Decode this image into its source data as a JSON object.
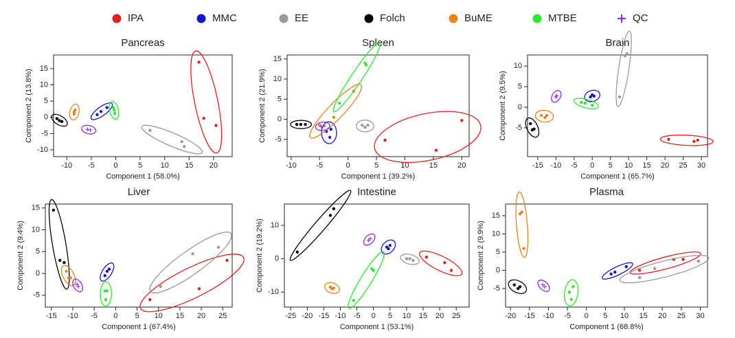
{
  "chart_data": [
    {
      "type": "scatter",
      "title": "Pancreas",
      "xlabel": "Component 1 (58.0%)",
      "ylabel": "Component 2 (13.8%)",
      "xlim": [
        -12.7,
        23.8
      ],
      "ylim": [
        -12.1,
        19.2
      ],
      "xticks": [
        -10,
        -5,
        0,
        5,
        10,
        15,
        20
      ],
      "yticks": [
        -10,
        -5,
        0,
        5,
        10,
        15
      ],
      "series": [
        {
          "name": "IPA",
          "color": "#e0201f",
          "x": [
            17,
            18,
            20.5
          ],
          "y": [
            17,
            -0.3,
            -2.5
          ]
        },
        {
          "name": "MMC",
          "color": "#1414c8",
          "x": [
            -3.8,
            -3,
            -1.8
          ],
          "y": [
            0.8,
            1.8,
            3
          ]
        },
        {
          "name": "EE",
          "color": "#999999",
          "x": [
            7,
            13.5,
            14
          ],
          "y": [
            -4,
            -7.5,
            -9
          ]
        },
        {
          "name": "Folch",
          "color": "#000000",
          "x": [
            -12,
            -11.5,
            -11
          ],
          "y": [
            -0.4,
            -1,
            -1.3
          ]
        },
        {
          "name": "BuME",
          "color": "#e8821e",
          "x": [
            -8.5,
            -8.3,
            -8.5
          ],
          "y": [
            1,
            2.3,
            1.6
          ]
        },
        {
          "name": "MTBE",
          "color": "#2ee62e",
          "x": [
            -0.5,
            -0.3,
            -0.2
          ],
          "y": [
            3,
            2.2,
            1.2
          ]
        },
        {
          "name": "QC",
          "color": "#8a2be2",
          "x": [
            -5.8,
            -5.2
          ],
          "y": [
            -3.7,
            -3.9
          ]
        }
      ]
    },
    {
      "type": "scatter",
      "title": "Spleen",
      "xlabel": "Component 1 (39.2%)",
      "ylabel": "Component 2 (21.9%)",
      "xlim": [
        -10.7,
        21.3
      ],
      "ylim": [
        -9.3,
        16
      ],
      "xticks": [
        -10,
        -5,
        0,
        5,
        10,
        15,
        20
      ],
      "yticks": [
        -5,
        0,
        5,
        10,
        15
      ],
      "series": [
        {
          "name": "IPA",
          "color": "#e0201f",
          "x": [
            6.5,
            15.5,
            20
          ],
          "y": [
            -5.2,
            -7.7,
            -0.3
          ]
        },
        {
          "name": "MMC",
          "color": "#1414c8",
          "x": [
            -3.8,
            -3.2,
            -3
          ],
          "y": [
            -3,
            -4.5,
            -2.5
          ]
        },
        {
          "name": "EE",
          "color": "#999999",
          "x": [
            2.5,
            3,
            3.5
          ],
          "y": [
            -1.5,
            -2,
            -1.5
          ]
        },
        {
          "name": "Folch",
          "color": "#000000",
          "x": [
            -9,
            -8.3,
            -7.5
          ],
          "y": [
            -1.3,
            -1.3,
            -1.3
          ]
        },
        {
          "name": "BuME",
          "color": "#e8821e",
          "x": [
            -5,
            -2.5,
            1
          ],
          "y": [
            -1.5,
            0.5,
            7
          ]
        },
        {
          "name": "MTBE",
          "color": "#2ee62e",
          "x": [
            -1.5,
            3.2,
            3
          ],
          "y": [
            4,
            13.5,
            14
          ]
        },
        {
          "name": "QC",
          "color": "#8a2be2",
          "x": [
            -4.7,
            -4.2
          ],
          "y": [
            -1.8,
            -1.7
          ]
        }
      ]
    },
    {
      "type": "scatter",
      "title": "Brain",
      "xlabel": "Component 1 (65.7%)",
      "ylabel": "Component 2 (9.5%)",
      "xlim": [
        -17.8,
        31.7
      ],
      "ylim": [
        -12,
        12.7
      ],
      "xticks": [
        -15,
        -10,
        -5,
        0,
        5,
        10,
        15,
        20,
        25,
        30
      ],
      "yticks": [
        -5,
        0,
        5,
        10
      ],
      "series": [
        {
          "name": "IPA",
          "color": "#e0201f",
          "x": [
            21,
            28,
            29
          ],
          "y": [
            -7.8,
            -8.3,
            -8
          ]
        },
        {
          "name": "MMC",
          "color": "#1414c8",
          "x": [
            -0.5,
            0,
            0.5
          ],
          "y": [
            2.5,
            3,
            2.7
          ]
        },
        {
          "name": "EE",
          "color": "#999999",
          "x": [
            7.5,
            9,
            9.5
          ],
          "y": [
            2.5,
            12.5,
            13
          ]
        },
        {
          "name": "Folch",
          "color": "#000000",
          "x": [
            -17,
            -16.5,
            -16
          ],
          "y": [
            -4,
            -5.5,
            -5.3
          ]
        },
        {
          "name": "BuME",
          "color": "#e8821e",
          "x": [
            -14,
            -13,
            -12.5
          ],
          "y": [
            -2,
            -2.5,
            -2
          ]
        },
        {
          "name": "MTBE",
          "color": "#2ee62e",
          "x": [
            -3,
            0,
            -2
          ],
          "y": [
            1.2,
            0.5,
            1
          ]
        },
        {
          "name": "QC",
          "color": "#8a2be2",
          "x": [
            -10,
            -9.8
          ],
          "y": [
            2.5,
            2.8
          ]
        }
      ]
    },
    {
      "type": "scatter",
      "title": "Liver",
      "xlabel": "Component 1 (67.4%)",
      "ylabel": "Component 2 (9.4%)",
      "xlim": [
        -16.4,
        27.2
      ],
      "ylim": [
        -7.7,
        15.9
      ],
      "xticks": [
        -15,
        -10,
        -5,
        0,
        5,
        10,
        15,
        20,
        25
      ],
      "yticks": [
        -5,
        0,
        5,
        10,
        15
      ],
      "series": [
        {
          "name": "IPA",
          "color": "#e0201f",
          "x": [
            8,
            19.5,
            26
          ],
          "y": [
            -6,
            -3.5,
            3
          ]
        },
        {
          "name": "MMC",
          "color": "#1414c8",
          "x": [
            -2.5,
            -2,
            -1.5
          ],
          "y": [
            -0.5,
            0.5,
            1
          ]
        },
        {
          "name": "EE",
          "color": "#999999",
          "x": [
            10.5,
            18,
            24
          ],
          "y": [
            -3,
            4.5,
            6
          ]
        },
        {
          "name": "Folch",
          "color": "#000000",
          "x": [
            -14.5,
            -13,
            -12
          ],
          "y": [
            14.5,
            3,
            2.5
          ]
        },
        {
          "name": "BuME",
          "color": "#e8821e",
          "x": [
            -11.5,
            -11,
            -10.5
          ],
          "y": [
            0.5,
            -1,
            -1
          ]
        },
        {
          "name": "MTBE",
          "color": "#2ee62e",
          "x": [
            -2.5,
            -2.3,
            -2
          ],
          "y": [
            -4,
            -6,
            -4
          ]
        },
        {
          "name": "QC",
          "color": "#8a2be2",
          "x": [
            -9,
            -8.7
          ],
          "y": [
            -2.5,
            -3
          ]
        }
      ]
    },
    {
      "type": "scatter",
      "title": "Intestine",
      "xlabel": "Component 1 (53.1%)",
      "ylabel": "Component 2 (19.2%)",
      "xlim": [
        -26.9,
        28.9
      ],
      "ylim": [
        -14.5,
        16.4
      ],
      "xticks": [
        -25,
        -20,
        -15,
        -10,
        -5,
        0,
        5,
        10,
        15,
        20,
        25
      ],
      "yticks": [
        -10,
        0,
        10
      ],
      "series": [
        {
          "name": "IPA",
          "color": "#e0201f",
          "x": [
            16,
            21.5,
            23.5
          ],
          "y": [
            0.5,
            -1.2,
            -3.5
          ]
        },
        {
          "name": "MMC",
          "color": "#1414c8",
          "x": [
            4,
            4.5,
            5
          ],
          "y": [
            3.5,
            3,
            4
          ]
        },
        {
          "name": "EE",
          "color": "#999999",
          "x": [
            10,
            11,
            12
          ],
          "y": [
            0,
            0,
            -0.5
          ]
        },
        {
          "name": "Folch",
          "color": "#000000",
          "x": [
            -23,
            -13,
            -12
          ],
          "y": [
            2,
            13,
            15
          ]
        },
        {
          "name": "BuME",
          "color": "#e8821e",
          "x": [
            -13,
            -12.5,
            -12
          ],
          "y": [
            -8.5,
            -9,
            -8.8
          ]
        },
        {
          "name": "MTBE",
          "color": "#2ee62e",
          "x": [
            -6,
            -0.5,
            0
          ],
          "y": [
            -12.5,
            -3,
            -3.5
          ]
        },
        {
          "name": "QC",
          "color": "#8a2be2",
          "x": [
            -1.5,
            -1
          ],
          "y": [
            5.5,
            6
          ]
        }
      ]
    },
    {
      "type": "scatter",
      "title": "Plasma",
      "xlabel": "Component 1 (68.8%)",
      "ylabel": "Component 2 (9.9%)",
      "xlim": [
        -21.3,
        31.9
      ],
      "ylim": [
        -10.1,
        18.2
      ],
      "xticks": [
        -20,
        -15,
        -10,
        -5,
        0,
        5,
        10,
        15,
        20,
        25,
        30
      ],
      "yticks": [
        -5,
        0,
        5,
        10,
        15
      ],
      "series": [
        {
          "name": "IPA",
          "color": "#e0201f",
          "x": [
            14,
            23,
            25.5
          ],
          "y": [
            0,
            3,
            3
          ]
        },
        {
          "name": "MMC",
          "color": "#1414c8",
          "x": [
            6.5,
            7.5,
            10.5
          ],
          "y": [
            -1,
            -0.5,
            1
          ]
        },
        {
          "name": "EE",
          "color": "#999999",
          "x": [
            14,
            18,
            29.5
          ],
          "y": [
            -2,
            0.5,
            2.5
          ]
        },
        {
          "name": "Folch",
          "color": "#000000",
          "x": [
            -19,
            -18,
            -17.5
          ],
          "y": [
            -4,
            -5,
            -4.5
          ]
        },
        {
          "name": "BuME",
          "color": "#e8821e",
          "x": [
            -17.5,
            -17,
            -16.5
          ],
          "y": [
            15.5,
            16,
            6
          ]
        },
        {
          "name": "MTBE",
          "color": "#2ee62e",
          "x": [
            -4.5,
            -4,
            -3.5
          ],
          "y": [
            -6,
            -8,
            -4.5
          ]
        },
        {
          "name": "QC",
          "color": "#8a2be2",
          "x": [
            -11.5,
            -11
          ],
          "y": [
            -4,
            -4.5
          ]
        }
      ]
    }
  ]
}
